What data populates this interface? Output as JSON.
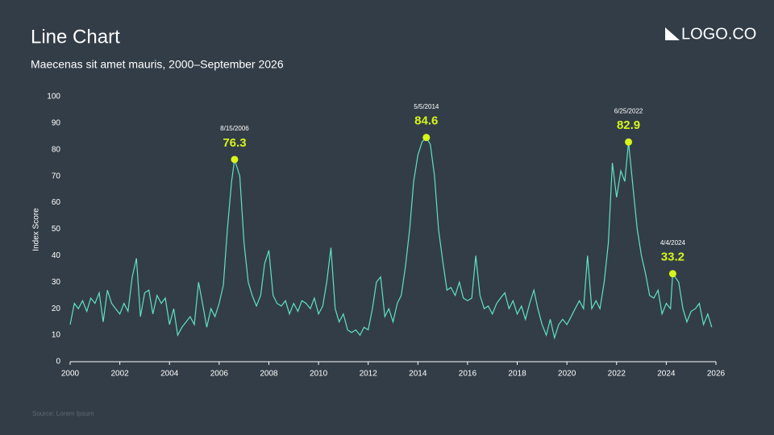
{
  "chart_data": {
    "type": "line",
    "title": "Line Chart",
    "subtitle": "Maecenas sit amet mauris, 2000–September 2026",
    "logo": "LOGO.CO",
    "source": "Source: Lorem Ipsum",
    "y_label": "Index Score",
    "color": "#5fe3c4",
    "highlight_color": "#d6f51c",
    "x": [
      2000,
      2000.17,
      2000.33,
      2000.5,
      2000.67,
      2000.83,
      2001,
      2001.17,
      2001.33,
      2001.5,
      2001.67,
      2001.83,
      2002,
      2002.17,
      2002.33,
      2002.5,
      2002.67,
      2002.83,
      2003,
      2003.17,
      2003.33,
      2003.5,
      2003.67,
      2003.83,
      2004,
      2004.17,
      2004.33,
      2004.5,
      2004.67,
      2004.83,
      2005,
      2005.17,
      2005.33,
      2005.5,
      2005.67,
      2005.83,
      2006,
      2006.17,
      2006.33,
      2006.5,
      2006.62,
      2006.83,
      2007,
      2007.17,
      2007.33,
      2007.5,
      2007.67,
      2007.83,
      2008,
      2008.17,
      2008.33,
      2008.5,
      2008.67,
      2008.83,
      2009,
      2009.17,
      2009.33,
      2009.5,
      2009.67,
      2009.83,
      2010,
      2010.17,
      2010.33,
      2010.5,
      2010.67,
      2010.83,
      2011,
      2011.17,
      2011.33,
      2011.5,
      2011.67,
      2011.83,
      2012,
      2012.17,
      2012.33,
      2012.5,
      2012.67,
      2012.83,
      2013,
      2013.17,
      2013.33,
      2013.5,
      2013.67,
      2013.83,
      2014,
      2014.17,
      2014.34,
      2014.5,
      2014.67,
      2014.83,
      2015,
      2015.17,
      2015.33,
      2015.5,
      2015.67,
      2015.83,
      2016,
      2016.17,
      2016.33,
      2016.5,
      2016.67,
      2016.83,
      2017,
      2017.17,
      2017.33,
      2017.5,
      2017.67,
      2017.83,
      2018,
      2018.17,
      2018.33,
      2018.5,
      2018.67,
      2018.83,
      2019,
      2019.17,
      2019.33,
      2019.5,
      2019.67,
      2019.83,
      2020,
      2020.17,
      2020.33,
      2020.5,
      2020.67,
      2020.83,
      2021,
      2021.17,
      2021.33,
      2021.5,
      2021.67,
      2021.83,
      2022,
      2022.17,
      2022.33,
      2022.48,
      2022.67,
      2022.83,
      2023,
      2023.17,
      2023.33,
      2023.5,
      2023.67,
      2023.83,
      2024,
      2024.17,
      2024.26,
      2024.5,
      2024.67,
      2024.83,
      2025,
      2025.17,
      2025.33,
      2025.5,
      2025.67,
      2025.83
    ],
    "values": [
      14,
      22,
      20,
      23,
      19,
      24,
      22,
      26,
      15,
      27,
      22,
      20,
      18,
      22,
      19,
      32,
      39,
      17,
      26,
      27,
      18,
      25,
      22,
      24,
      14,
      20,
      10,
      13,
      15,
      17,
      14,
      30,
      22,
      13,
      20,
      17,
      22,
      29,
      50,
      68,
      76.3,
      70,
      45,
      30,
      25,
      21,
      25,
      37,
      42,
      25,
      22,
      21,
      23,
      18,
      22,
      19,
      23,
      22,
      20,
      24,
      18,
      21,
      30,
      43,
      20,
      15,
      18,
      12,
      11,
      12,
      10,
      13,
      12,
      20,
      30,
      32,
      17,
      20,
      15,
      22,
      25,
      36,
      50,
      68,
      78,
      83,
      84.6,
      82,
      70,
      50,
      38,
      27,
      28,
      25,
      30,
      24,
      23,
      24,
      40,
      25,
      20,
      21,
      18,
      22,
      24,
      26,
      20,
      23,
      18,
      21,
      16,
      22,
      27,
      20,
      14,
      10,
      16,
      9,
      14,
      16,
      14,
      17,
      20,
      23,
      20,
      40,
      20,
      23,
      20,
      30,
      45,
      75,
      62,
      72,
      68,
      82.9,
      65,
      50,
      40,
      33,
      25,
      24,
      27,
      18,
      22,
      20,
      33.2,
      30,
      20,
      15,
      19,
      20,
      22,
      14,
      18,
      13
    ],
    "annotations": [
      {
        "date": "8/15/2006",
        "x": 2006.62,
        "value": 76.3
      },
      {
        "date": "5/5/2014",
        "x": 2014.34,
        "value": 84.6
      },
      {
        "date": "6/25/2022",
        "x": 2022.48,
        "value": 82.9
      },
      {
        "date": "4/4/2024",
        "x": 2024.26,
        "value": 33.2
      }
    ],
    "xlim": [
      2000,
      2026
    ],
    "xticks": [
      2000,
      2002,
      2004,
      2006,
      2008,
      2010,
      2012,
      2014,
      2016,
      2018,
      2020,
      2022,
      2024,
      2026
    ],
    "ylim": [
      0,
      100
    ],
    "yticks": [
      0,
      10,
      20,
      30,
      40,
      50,
      60,
      70,
      80,
      90,
      100
    ]
  }
}
